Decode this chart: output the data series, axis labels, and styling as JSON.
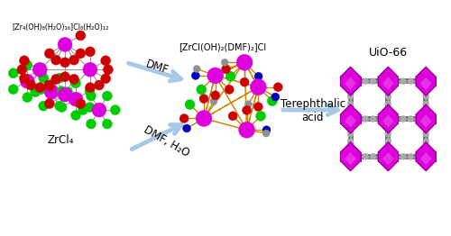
{
  "bg_color": "#ffffff",
  "label_zrcl4": "ZrCl₄",
  "label_zr4": "[Zr₄(OH)₈(H₂O)₁₆]Cl₈(H₂O)₁₂",
  "label_zrcl_oh": "[ZrCl(OH)₂(DMF)₂]Cl",
  "label_uio66": "UiO-66",
  "label_dmf_h2o": "DMF, H₂O",
  "label_dmf": "DMF",
  "label_terephthalic": "Terephthalic\nacid",
  "arrow_color": "#a8c8e8",
  "zr_color": "#dd00dd",
  "cl_color": "#00cc00",
  "o_color": "#cc0000",
  "n_color": "#0000bb",
  "c_color": "#909090",
  "line_color": "#999999",
  "bond_color": "#cc8800",
  "dashed_color": "#dd0000",
  "uio_zr_color": "#dd00dd",
  "uio_edge_color": "#990099"
}
